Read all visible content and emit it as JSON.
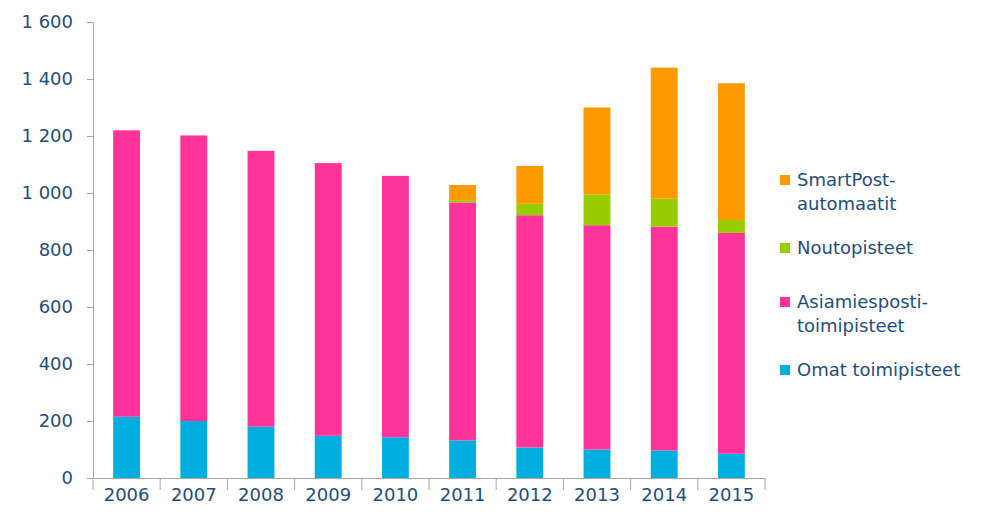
{
  "chart_data": {
    "type": "bar",
    "stacked": true,
    "grid": false,
    "legend": "right",
    "categories": [
      "2006",
      "2007",
      "2008",
      "2009",
      "2010",
      "2011",
      "2012",
      "2013",
      "2014",
      "2015"
    ],
    "ylim": [
      0,
      1600
    ],
    "yticks": [
      0,
      200,
      400,
      600,
      800,
      {
        "value": 1000,
        "label": "1 000"
      },
      {
        "value": 1200,
        "label": "1 200"
      },
      {
        "value": 1400,
        "label": "1 400"
      },
      {
        "value": 1600,
        "label": "1 600"
      }
    ],
    "series": [
      {
        "name": "Omat toimipisteet",
        "color": "#00aee0",
        "values": [
          215,
          200,
          180,
          148,
          143,
          132,
          107,
          100,
          97,
          85
        ]
      },
      {
        "name": "Asiamiesposti-\ntoimipisteet",
        "color": "#ff3399",
        "values": [
          1005,
          1002,
          968,
          957,
          917,
          835,
          815,
          787,
          785,
          775
        ]
      },
      {
        "name": "Noutopisteet",
        "color": "#99cc00",
        "values": [
          0,
          0,
          0,
          0,
          0,
          8,
          40,
          108,
          98,
          45
        ]
      },
      {
        "name": "SmartPost-\nautomaatit",
        "color": "#ff9900",
        "values": [
          0,
          0,
          0,
          0,
          0,
          53,
          133,
          305,
          460,
          480
        ]
      }
    ]
  }
}
